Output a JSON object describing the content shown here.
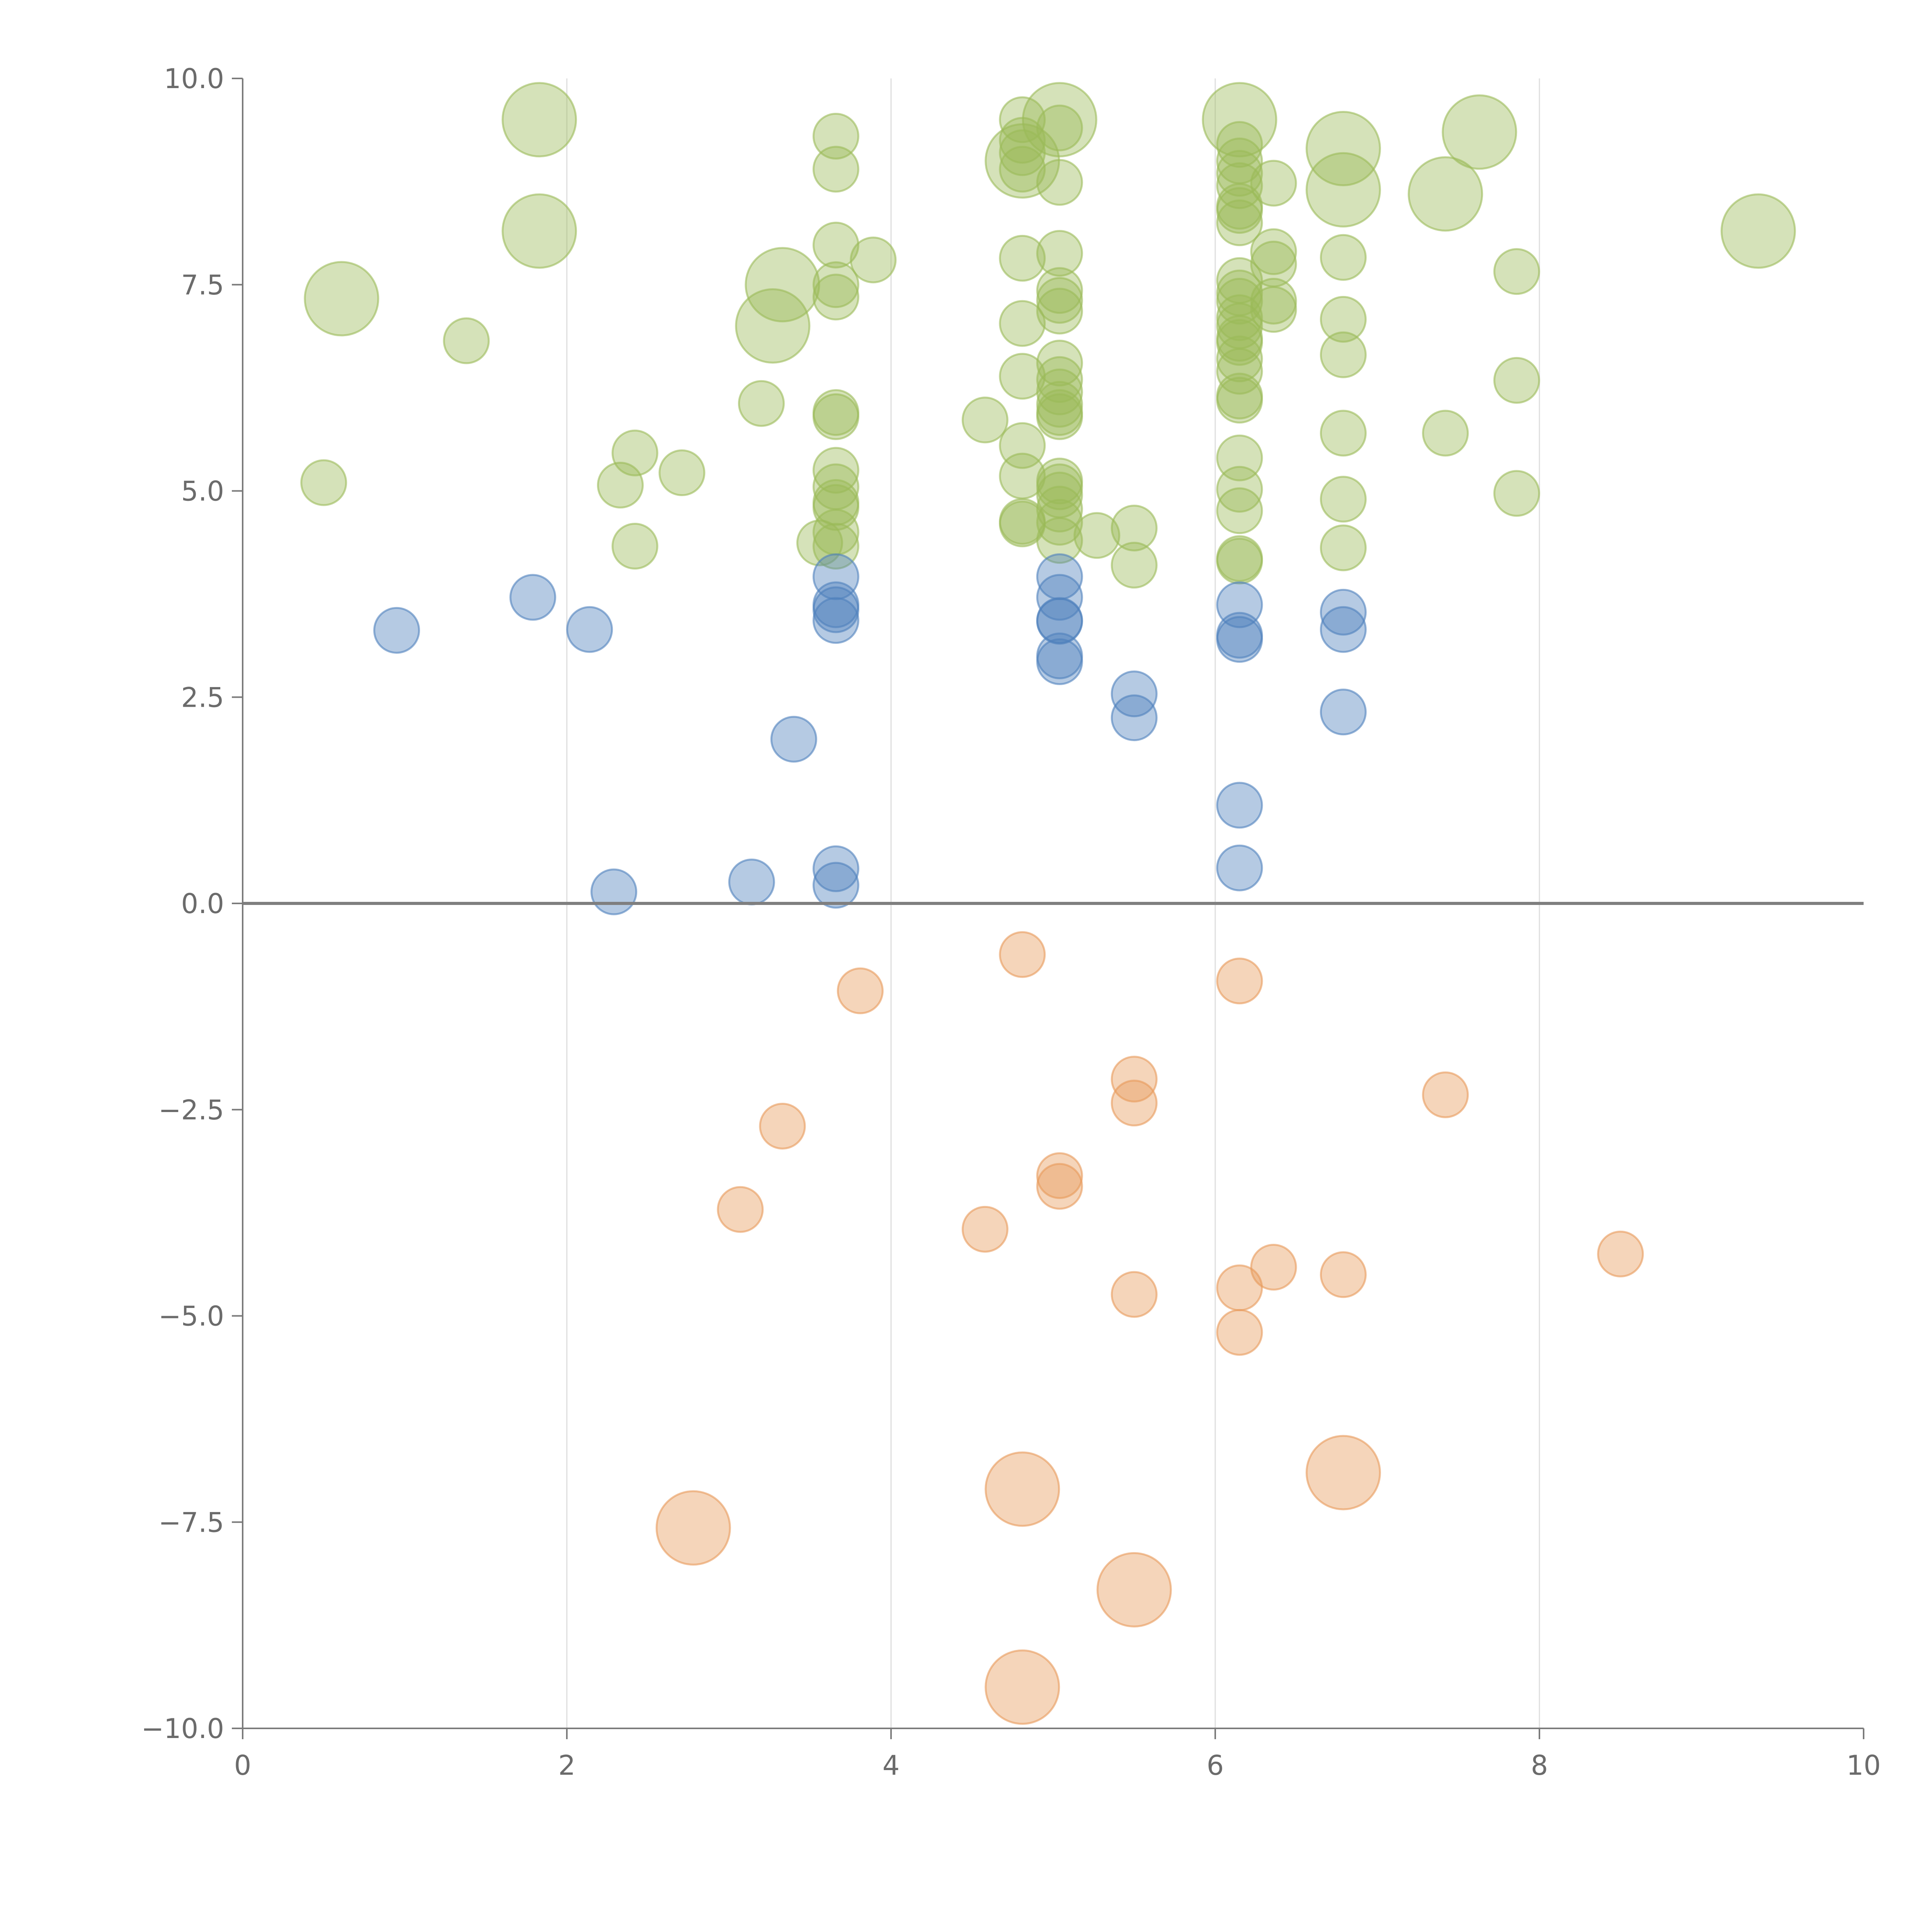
{
  "colors": {
    "positive_high": "#9bbb59",
    "positive_low": "#4f81bd",
    "negative": "#e79a5a"
  },
  "chart_data": {
    "type": "scatter",
    "subtype": "bubble",
    "title": "",
    "xlabel": "",
    "ylabel": "",
    "xlim": [
      0,
      10
    ],
    "ylim": [
      -10,
      10
    ],
    "x_ticks": [
      0,
      2,
      4,
      6,
      8,
      10
    ],
    "y_ticks": [
      -10.0,
      -7.5,
      -5.0,
      -2.5,
      0.0,
      2.5,
      5.0,
      7.5,
      10.0
    ],
    "x_tick_labels": [
      "0",
      "2",
      "4",
      "6",
      "8",
      "10"
    ],
    "y_tick_labels": [
      "−10.0",
      "−7.5",
      "−5.0",
      "−2.5",
      "0.0",
      "2.5",
      "5.0",
      "7.5",
      "10.0"
    ],
    "grid": "vertical",
    "zero_line": true,
    "legend": "none",
    "series": [
      {
        "color": "#9bbb59",
        "points": [
          [
            1.83,
            9.5,
            2
          ],
          [
            0.61,
            7.33,
            2
          ],
          [
            1.83,
            8.15,
            2
          ],
          [
            3.27,
            7.0,
            2
          ],
          [
            3.33,
            7.5,
            2
          ],
          [
            4.81,
            9.0,
            2
          ],
          [
            5.04,
            9.5,
            2
          ],
          [
            6.15,
            9.5,
            2
          ],
          [
            6.79,
            9.15,
            2
          ],
          [
            6.79,
            8.65,
            2
          ],
          [
            7.42,
            8.6,
            2
          ],
          [
            7.63,
            9.35,
            2
          ],
          [
            9.35,
            8.15,
            2
          ],
          [
            0.5,
            5.1,
            1
          ],
          [
            1.38,
            6.82,
            1
          ],
          [
            2.33,
            5.07,
            1
          ],
          [
            2.42,
            5.46,
            1
          ],
          [
            2.42,
            4.33,
            1
          ],
          [
            2.71,
            5.22,
            1
          ],
          [
            3.2,
            6.06,
            1
          ],
          [
            3.56,
            4.37,
            1
          ],
          [
            3.66,
            9.3,
            1
          ],
          [
            3.66,
            8.9,
            1
          ],
          [
            3.66,
            7.98,
            1
          ],
          [
            3.66,
            7.5,
            1
          ],
          [
            3.66,
            7.35,
            1
          ],
          [
            3.66,
            5.95,
            1
          ],
          [
            3.66,
            5.9,
            1
          ],
          [
            3.66,
            5.25,
            1
          ],
          [
            3.66,
            5.05,
            1
          ],
          [
            3.66,
            4.86,
            1
          ],
          [
            3.66,
            4.8,
            1
          ],
          [
            3.66,
            4.5,
            1
          ],
          [
            3.66,
            4.33,
            1
          ],
          [
            3.89,
            7.8,
            1
          ],
          [
            4.58,
            5.86,
            1
          ],
          [
            4.81,
            9.5,
            1
          ],
          [
            4.81,
            9.25,
            1
          ],
          [
            4.81,
            9.1,
            1
          ],
          [
            4.81,
            8.9,
            1
          ],
          [
            4.81,
            7.82,
            1
          ],
          [
            4.81,
            7.03,
            1
          ],
          [
            4.81,
            6.39,
            1
          ],
          [
            4.81,
            5.55,
            1
          ],
          [
            4.81,
            5.18,
            1
          ],
          [
            4.81,
            4.63,
            1
          ],
          [
            4.81,
            4.6,
            1
          ],
          [
            5.04,
            9.4,
            1
          ],
          [
            5.04,
            8.74,
            1
          ],
          [
            5.04,
            7.88,
            1
          ],
          [
            5.04,
            7.43,
            1
          ],
          [
            5.04,
            7.31,
            1
          ],
          [
            5.04,
            7.18,
            1
          ],
          [
            5.04,
            6.55,
            1
          ],
          [
            5.04,
            6.35,
            1
          ],
          [
            5.04,
            6.2,
            1
          ],
          [
            5.04,
            6.05,
            1
          ],
          [
            5.04,
            5.95,
            1
          ],
          [
            5.04,
            5.9,
            1
          ],
          [
            5.04,
            5.12,
            1
          ],
          [
            5.04,
            5.05,
            1
          ],
          [
            5.04,
            4.95,
            1
          ],
          [
            5.04,
            4.78,
            1
          ],
          [
            5.04,
            4.62,
            1
          ],
          [
            5.04,
            4.4,
            1
          ],
          [
            5.27,
            4.46,
            1
          ],
          [
            5.5,
            4.55,
            1
          ],
          [
            5.5,
            4.1,
            1
          ],
          [
            6.15,
            9.2,
            1
          ],
          [
            6.15,
            9.0,
            1
          ],
          [
            6.15,
            8.85,
            1
          ],
          [
            6.15,
            8.7,
            1
          ],
          [
            6.15,
            8.45,
            1
          ],
          [
            6.15,
            8.4,
            1
          ],
          [
            6.15,
            8.25,
            1
          ],
          [
            6.15,
            7.55,
            1
          ],
          [
            6.15,
            7.4,
            1
          ],
          [
            6.15,
            7.3,
            1
          ],
          [
            6.15,
            7.1,
            1
          ],
          [
            6.15,
            7.0,
            1
          ],
          [
            6.15,
            6.85,
            1
          ],
          [
            6.15,
            6.8,
            1
          ],
          [
            6.15,
            6.6,
            1
          ],
          [
            6.15,
            6.45,
            1
          ],
          [
            6.15,
            6.15,
            1
          ],
          [
            6.15,
            6.1,
            1
          ],
          [
            6.15,
            5.4,
            1
          ],
          [
            6.15,
            5.02,
            1
          ],
          [
            6.15,
            4.76,
            1
          ],
          [
            6.15,
            4.18,
            1
          ],
          [
            6.15,
            4.15,
            1
          ],
          [
            6.36,
            8.73,
            1
          ],
          [
            6.36,
            7.9,
            1
          ],
          [
            6.36,
            7.75,
            1
          ],
          [
            6.36,
            7.3,
            1
          ],
          [
            6.36,
            7.2,
            1
          ],
          [
            6.79,
            7.83,
            1
          ],
          [
            6.79,
            7.08,
            1
          ],
          [
            6.79,
            6.65,
            1
          ],
          [
            6.79,
            5.7,
            1
          ],
          [
            6.79,
            4.9,
            1
          ],
          [
            6.79,
            4.31,
            1
          ],
          [
            7.42,
            5.7,
            1
          ],
          [
            7.86,
            7.66,
            1
          ],
          [
            7.86,
            6.34,
            1
          ],
          [
            7.86,
            4.97,
            1
          ]
        ]
      },
      {
        "color": "#4f81bd",
        "points": [
          [
            0.95,
            3.31,
            1
          ],
          [
            1.79,
            3.71,
            1
          ],
          [
            2.14,
            3.32,
            1
          ],
          [
            2.29,
            0.14,
            1
          ],
          [
            3.14,
            0.26,
            1
          ],
          [
            3.4,
            1.99,
            1
          ],
          [
            3.66,
            3.96,
            1
          ],
          [
            3.66,
            3.62,
            1
          ],
          [
            3.66,
            3.56,
            1
          ],
          [
            3.66,
            3.43,
            1
          ],
          [
            3.66,
            0.42,
            1
          ],
          [
            3.66,
            0.22,
            1
          ],
          [
            5.04,
            3.96,
            1
          ],
          [
            5.04,
            3.71,
            1
          ],
          [
            5.04,
            3.43,
            1
          ],
          [
            5.04,
            3.42,
            1
          ],
          [
            5.04,
            3.0,
            1
          ],
          [
            5.04,
            2.93,
            1
          ],
          [
            5.5,
            2.54,
            1
          ],
          [
            5.5,
            2.25,
            1
          ],
          [
            6.15,
            3.62,
            1
          ],
          [
            6.15,
            3.25,
            1
          ],
          [
            6.15,
            3.2,
            1
          ],
          [
            6.15,
            1.19,
            1
          ],
          [
            6.15,
            0.43,
            1
          ],
          [
            6.79,
            3.53,
            1
          ],
          [
            6.79,
            3.32,
            1
          ],
          [
            6.79,
            2.32,
            1
          ]
        ]
      },
      {
        "color": "#e79a5a",
        "points": [
          [
            3.81,
            -1.06,
            1
          ],
          [
            4.81,
            -0.62,
            1
          ],
          [
            6.15,
            -0.94,
            1
          ],
          [
            5.5,
            -2.13,
            1
          ],
          [
            5.5,
            -2.42,
            1
          ],
          [
            3.33,
            -2.7,
            1
          ],
          [
            7.42,
            -2.32,
            1
          ],
          [
            3.07,
            -3.71,
            1
          ],
          [
            5.04,
            -3.3,
            1
          ],
          [
            5.04,
            -3.43,
            1
          ],
          [
            4.58,
            -3.95,
            1
          ],
          [
            8.5,
            -4.25,
            1
          ],
          [
            6.36,
            -4.41,
            1
          ],
          [
            6.79,
            -4.5,
            1
          ],
          [
            6.15,
            -4.66,
            1
          ],
          [
            5.5,
            -4.74,
            1
          ],
          [
            6.15,
            -5.2,
            1
          ],
          [
            4.81,
            -7.1,
            2
          ],
          [
            6.79,
            -6.9,
            2
          ],
          [
            2.78,
            -7.57,
            2
          ],
          [
            5.5,
            -8.32,
            2
          ],
          [
            4.81,
            -9.5,
            2
          ]
        ]
      }
    ]
  }
}
